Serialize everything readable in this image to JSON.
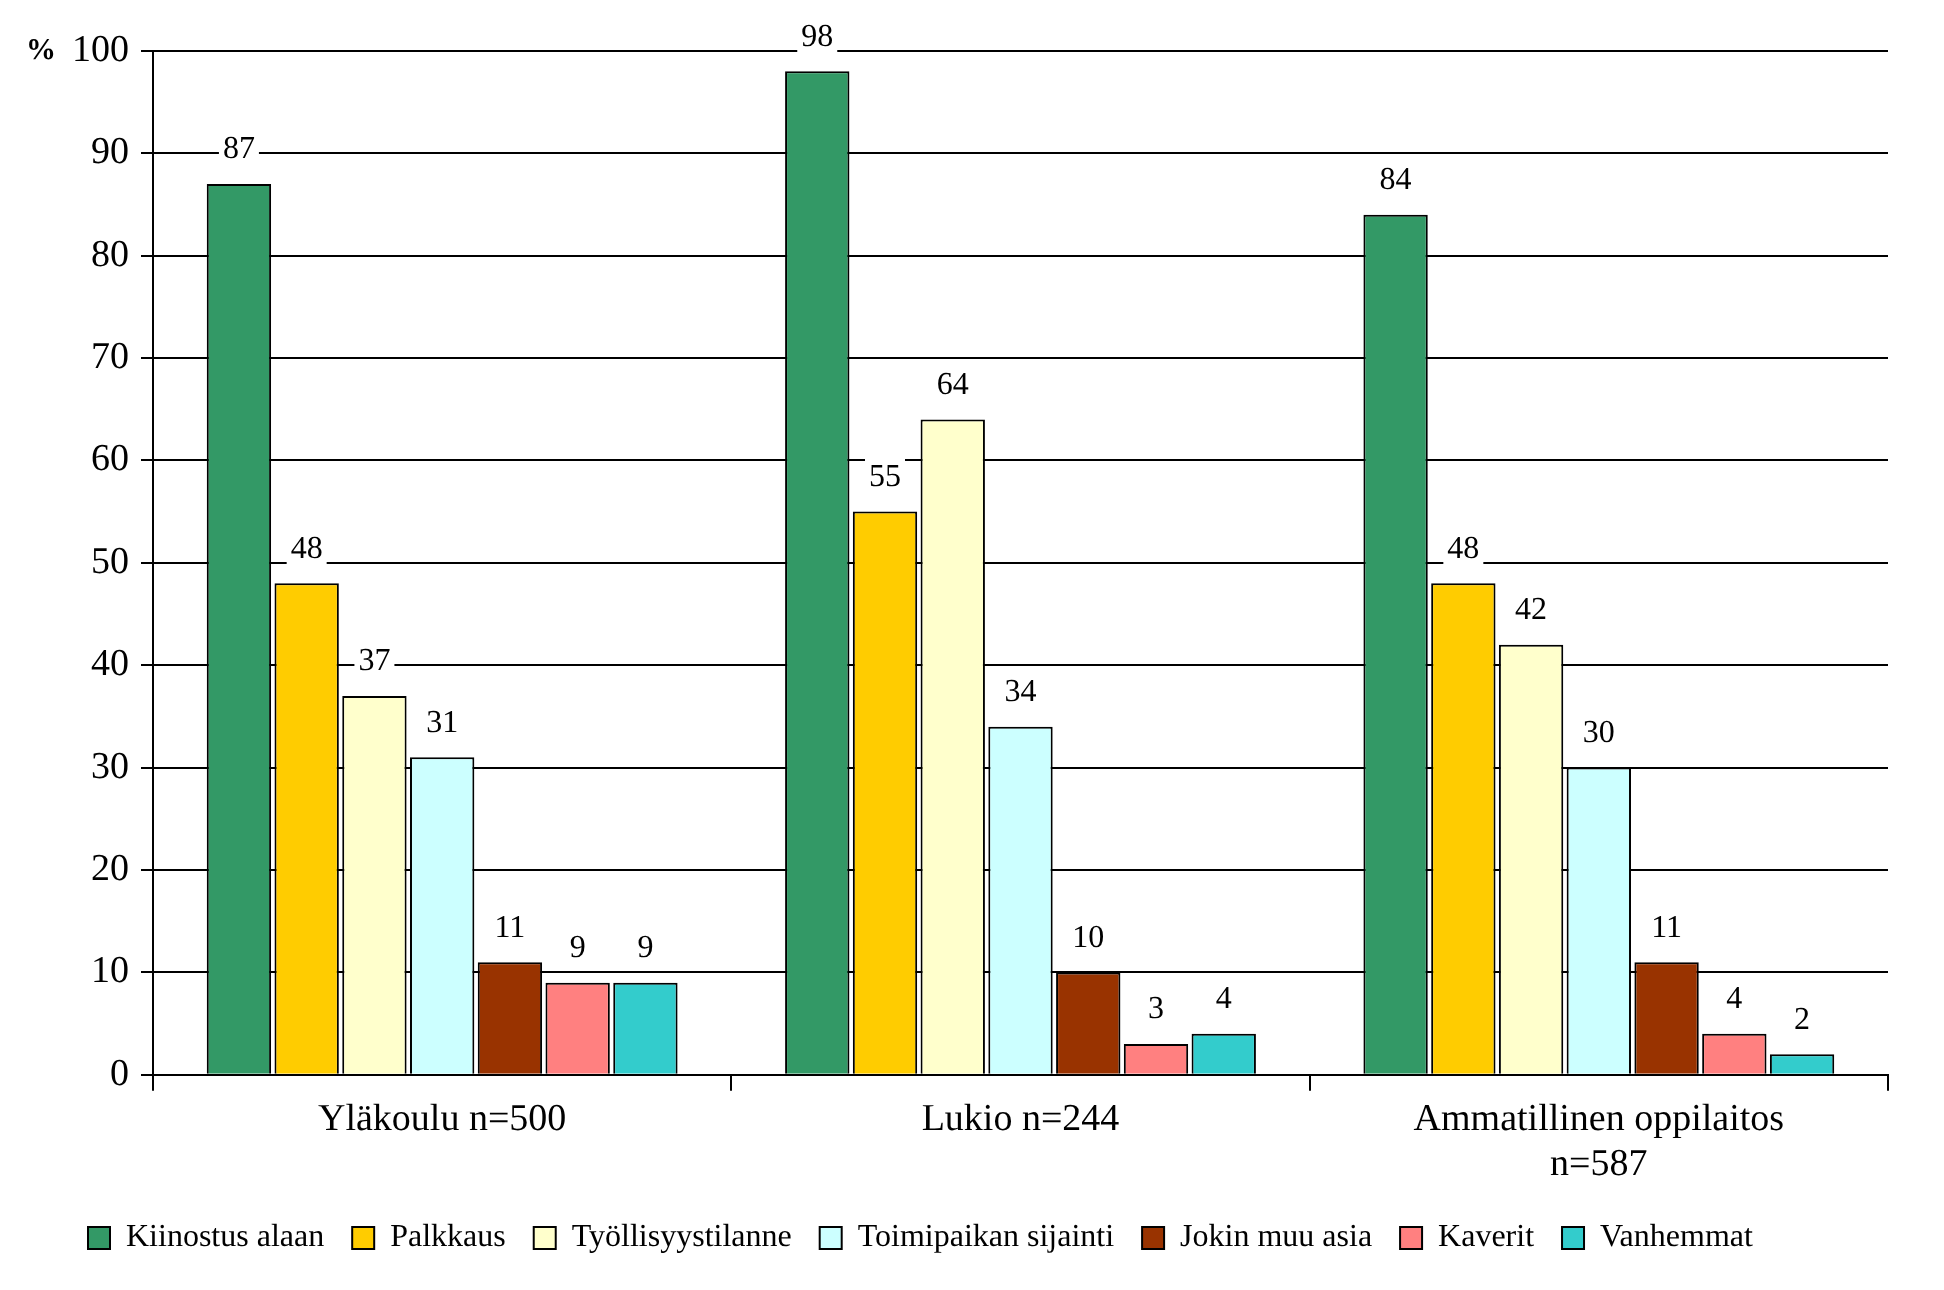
{
  "chart_data": {
    "type": "bar",
    "ylabel": "%",
    "categories": [
      "Yläkoulu n=500",
      "Lukio n=244",
      "Ammatillinen oppilaitos n=587"
    ],
    "series": [
      {
        "name": "Kiinostus alaan",
        "color": "#339966",
        "values": [
          87,
          98,
          84
        ]
      },
      {
        "name": "Palkkaus",
        "color": "#ffcc00",
        "values": [
          48,
          55,
          48
        ]
      },
      {
        "name": "Työllisyystilanne",
        "color": "#ffffcc",
        "values": [
          37,
          64,
          42
        ]
      },
      {
        "name": "Toimipaikan sijainti",
        "color": "#ccffff",
        "values": [
          31,
          34,
          30
        ]
      },
      {
        "name": "Jokin muu asia",
        "color": "#993300",
        "values": [
          11,
          10,
          11
        ]
      },
      {
        "name": "Kaverit",
        "color": "#ff8080",
        "values": [
          9,
          3,
          4
        ]
      },
      {
        "name": "Vanhemmat",
        "color": "#33cccc",
        "values": [
          9,
          4,
          2
        ]
      }
    ],
    "ylim": [
      0,
      100
    ],
    "yticks": [
      0,
      10,
      20,
      30,
      40,
      50,
      60,
      70,
      80,
      90,
      100
    ],
    "grid": "y",
    "legend": "bottom",
    "data_labels": true
  }
}
